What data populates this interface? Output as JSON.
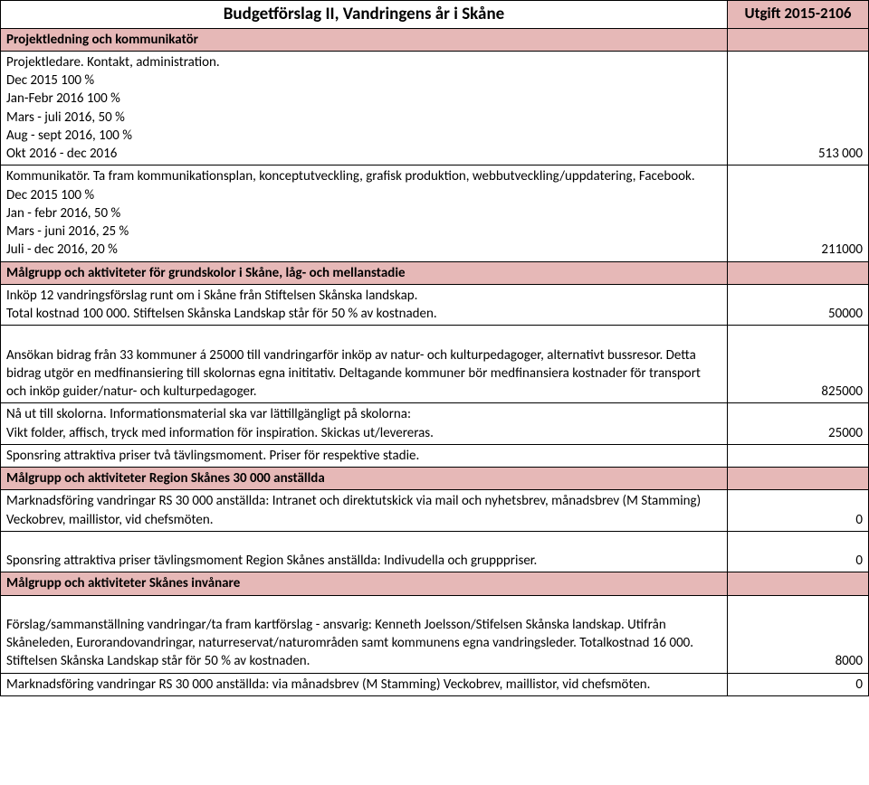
{
  "colors": {
    "section_bg": "#e6b8b7",
    "border": "#000000",
    "text": "#000000",
    "page_bg": "#ffffff"
  },
  "header": {
    "title": "Budgetförslag II, Vandringens år i Skåne",
    "right": "Utgift 2015-2106"
  },
  "rows": [
    {
      "type": "section",
      "left": "Projektledning och kommunikatör",
      "right": ""
    },
    {
      "type": "data",
      "left": "Projektledare. Kontakt, administration.\nDec 2015 100 %\nJan-Febr 2016 100 %\nMars - juli 2016, 50 %\nAug - sept 2016, 100 %\nOkt 2016 - dec 2016",
      "right": "513 000"
    },
    {
      "type": "data",
      "left": "Kommunikatör. Ta fram kommunikationsplan, konceptutveckling, grafisk produktion, webbutveckling/uppdatering, Facebook.\nDec 2015 100 %\nJan - febr 2016, 50 %\nMars - juni 2016, 25 %\nJuli - dec 2016, 20 %",
      "right": "211000"
    },
    {
      "type": "section",
      "left": "Målgrupp och aktiviteter för grundskolor i Skåne, låg- och mellanstadie",
      "right": ""
    },
    {
      "type": "data",
      "left": "Inköp 12 vandringsförslag runt om i Skåne från Stiftelsen Skånska landskap.\nTotal kostnad 100 000. Stiftelsen Skånska Landskap står för 50 % av kostnaden.",
      "right": "50000"
    },
    {
      "type": "data",
      "left": "\nAnsökan bidrag från 33 kommuner á 25000 till vandringarför inköp av natur- och kulturpedagoger, alternativt bussresor. Detta bidrag utgör en medfinansiering till skolornas egna inititativ. Deltagande kommuner bör medfinansiera kostnader för transport och inköp guider/natur- och kulturpedagoger.",
      "right": "825000"
    },
    {
      "type": "data",
      "left": "Nå ut till skolorna. Informationsmaterial ska var lättillgängligt på skolorna:\nVikt folder, affisch, tryck med information för inspiration. Skickas ut/levereras.",
      "right": "25000"
    },
    {
      "type": "data",
      "left": "Sponsring attraktiva priser två tävlingsmoment. Priser för respektive stadie.",
      "right": ""
    },
    {
      "type": "section",
      "left": "Målgrupp och aktiviteter Region Skånes 30 000 anställda",
      "right": ""
    },
    {
      "type": "data",
      "left": "Marknadsföring vandringar RS 30 000 anställda: Intranet och direktutskick via mail och nyhetsbrev, månadsbrev (M Stamming) Veckobrev, maillistor, vid chefsmöten.",
      "right": "0"
    },
    {
      "type": "data",
      "left": "\nSponsring attraktiva priser tävlingsmoment Region Skånes anställda: Indivudella och grupppriser.",
      "right": "0"
    },
    {
      "type": "section",
      "left": "Målgrupp och aktiviteter Skånes invånare",
      "right": ""
    },
    {
      "type": "data",
      "left": "\nFörslag/sammanställning vandringar/ta fram kartförslag - ansvarig: Kenneth Joelsson/Stifelsen Skånska landskap. Utifrån Skåneleden, Eurorandovandringar, naturreservat/naturområden samt kommunens egna vandringsleder. Totalkostnad 16 000. Stiftelsen Skånska Landskap står för 50 % av kostnaden.",
      "right": "8000"
    },
    {
      "type": "data",
      "left": "Marknadsföring vandringar RS 30 000 anställda: via månadsbrev (M Stamming) Veckobrev, maillistor, vid chefsmöten.",
      "right": "0"
    }
  ]
}
